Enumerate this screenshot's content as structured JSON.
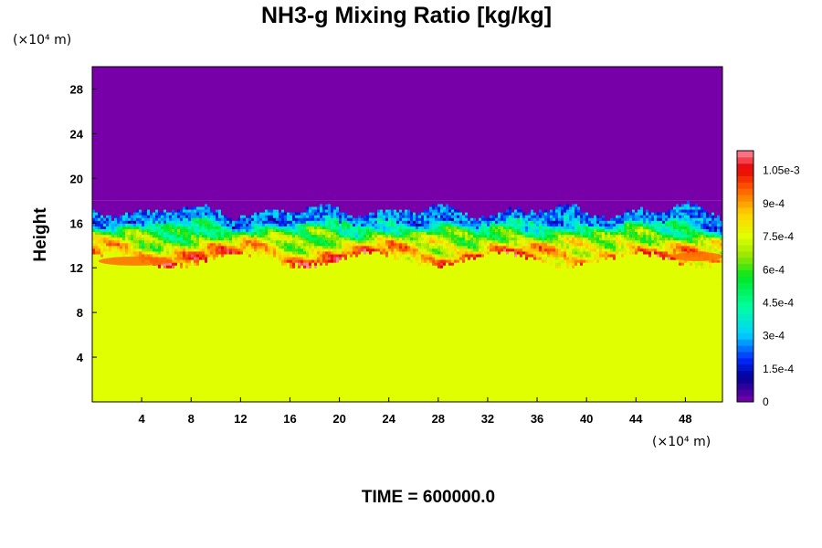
{
  "chart_data": {
    "type": "heatmap",
    "title": "NH3-g Mixing Ratio [kg/kg]",
    "xlabel": "",
    "ylabel": "Height",
    "x_unit": "(×10⁴ m)",
    "y_unit": "(×10⁴ m)",
    "xlim": [
      0,
      51
    ],
    "ylim": [
      0,
      30
    ],
    "x_ticks": [
      4,
      8,
      12,
      16,
      20,
      24,
      28,
      32,
      36,
      40,
      44,
      48
    ],
    "y_ticks": [
      4,
      8,
      12,
      16,
      20,
      24,
      28
    ],
    "colorbar": {
      "range": [
        0,
        0.00114
      ],
      "tick_labels": [
        "0",
        "1.5e-4",
        "3e-4",
        "4.5e-4",
        "6e-4",
        "7.5e-4",
        "9e-4",
        "1.05e-3"
      ],
      "tick_values": [
        0,
        0.00015,
        0.0003,
        0.00045,
        0.0006,
        0.00075,
        0.0009,
        0.00105
      ]
    },
    "regions": [
      {
        "name": "lower layer",
        "y_range": [
          0,
          11
        ],
        "value": 0.00075
      },
      {
        "name": "mixed layer",
        "y_range": [
          11,
          18
        ],
        "value_range": [
          0,
          0.00105
        ]
      },
      {
        "name": "upper layer",
        "y_range": [
          18,
          30
        ],
        "value": 0
      }
    ],
    "time_label": "TIME = 600000.0"
  },
  "colors": {
    "upper": "#7800a8",
    "lower": "#e0ff00"
  }
}
